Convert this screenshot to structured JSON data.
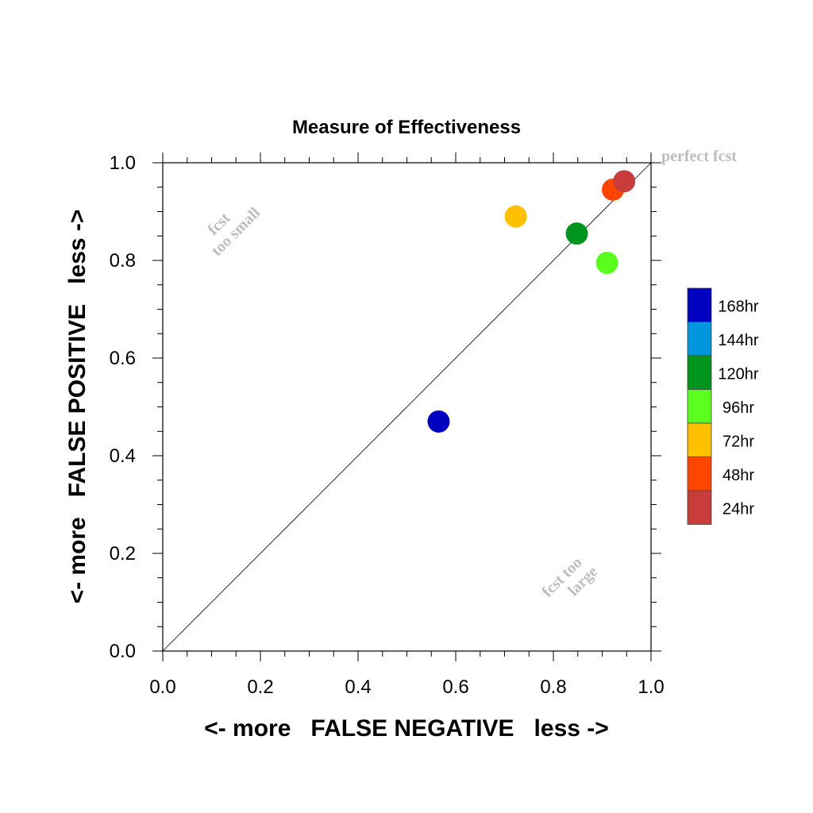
{
  "chart_data": {
    "type": "scatter",
    "title": "Measure of Effectiveness",
    "xlabel": "<- more   FALSE NEGATIVE   less ->",
    "ylabel": "<- more   FALSE POSITIVE   less ->",
    "xlim": [
      0.0,
      1.0
    ],
    "ylim": [
      0.0,
      1.0
    ],
    "x_ticks": [
      "0.0",
      "0.2",
      "0.4",
      "0.6",
      "0.8",
      "1.0"
    ],
    "y_ticks": [
      "0.0",
      "0.2",
      "0.4",
      "0.6",
      "0.8",
      "1.0"
    ],
    "grid": false,
    "reference_line": "diagonal",
    "annotations": {
      "perfect": "perfect fcst",
      "small_line1": "fcst",
      "small_line2": "too small",
      "large_line1": "fcst too",
      "large_line2": "large"
    },
    "legend": {
      "placement": "right",
      "entries": [
        {
          "label": "168hr",
          "color": "#0000c0"
        },
        {
          "label": "144hr",
          "color": "#0096dc"
        },
        {
          "label": "120hr",
          "color": "#00961e"
        },
        {
          "label": "96hr",
          "color": "#5aff1e"
        },
        {
          "label": "72hr",
          "color": "#ffc000"
        },
        {
          "label": "48hr",
          "color": "#ff4600"
        },
        {
          "label": "24hr",
          "color": "#c83c3c"
        }
      ]
    },
    "points": [
      {
        "label": "168hr",
        "x": 0.565,
        "y": 0.47,
        "color": "#0000c0"
      },
      {
        "label": "72hr",
        "x": 0.723,
        "y": 0.89,
        "color": "#ffc000"
      },
      {
        "label": "120hr",
        "x": 0.848,
        "y": 0.855,
        "color": "#00961e"
      },
      {
        "label": "96hr",
        "x": 0.91,
        "y": 0.795,
        "color": "#5aff1e"
      },
      {
        "label": "48hr",
        "x": 0.922,
        "y": 0.945,
        "color": "#ff4600"
      },
      {
        "label": "24hr",
        "x": 0.945,
        "y": 0.962,
        "color": "#c83c3c"
      }
    ]
  }
}
